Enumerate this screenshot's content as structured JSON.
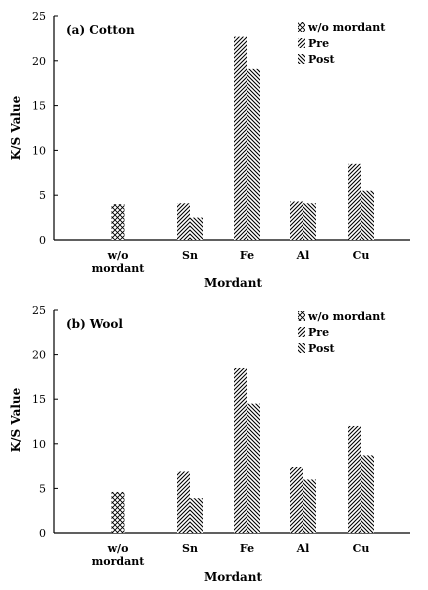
{
  "chart_data": [
    {
      "type": "bar",
      "title": "(a) Cotton",
      "xlabel": "Mordant",
      "ylabel": "K/S Value",
      "ylim": [
        0,
        25
      ],
      "yticks": [
        0,
        5,
        10,
        15,
        20,
        25
      ],
      "grid": false,
      "legend_position": "top-right",
      "categories": [
        "w/o mordant",
        "Sn",
        "Fe",
        "Al",
        "Cu"
      ],
      "category_lines": [
        [
          "w/o",
          "mordant"
        ],
        [
          "Sn"
        ],
        [
          "Fe"
        ],
        [
          "Al"
        ],
        [
          "Cu"
        ]
      ],
      "series": [
        {
          "name": "w/o mordant",
          "values": [
            4.0,
            null,
            null,
            null,
            null
          ],
          "pattern": "crosshatch"
        },
        {
          "name": "Pre",
          "values": [
            null,
            4.1,
            22.7,
            4.3,
            8.5
          ],
          "pattern": "diag-right"
        },
        {
          "name": "Post",
          "values": [
            null,
            2.5,
            19.1,
            4.1,
            5.5
          ],
          "pattern": "diag-left"
        }
      ]
    },
    {
      "type": "bar",
      "title": "(b) Wool",
      "xlabel": "Mordant",
      "ylabel": "K/S Value",
      "ylim": [
        0,
        25
      ],
      "yticks": [
        0,
        5,
        10,
        15,
        20,
        25
      ],
      "grid": false,
      "legend_position": "top-right",
      "categories": [
        "w/o mordant",
        "Sn",
        "Fe",
        "Al",
        "Cu"
      ],
      "category_lines": [
        [
          "w/o",
          "mordant"
        ],
        [
          "Sn"
        ],
        [
          "Fe"
        ],
        [
          "Al"
        ],
        [
          "Cu"
        ]
      ],
      "series": [
        {
          "name": "w/o mordant",
          "values": [
            4.6,
            null,
            null,
            null,
            null
          ],
          "pattern": "crosshatch"
        },
        {
          "name": "Pre",
          "values": [
            null,
            6.9,
            18.5,
            7.4,
            12.0
          ],
          "pattern": "diag-right"
        },
        {
          "name": "Post",
          "values": [
            null,
            3.9,
            14.5,
            6.0,
            8.7
          ],
          "pattern": "diag-left"
        }
      ]
    }
  ]
}
